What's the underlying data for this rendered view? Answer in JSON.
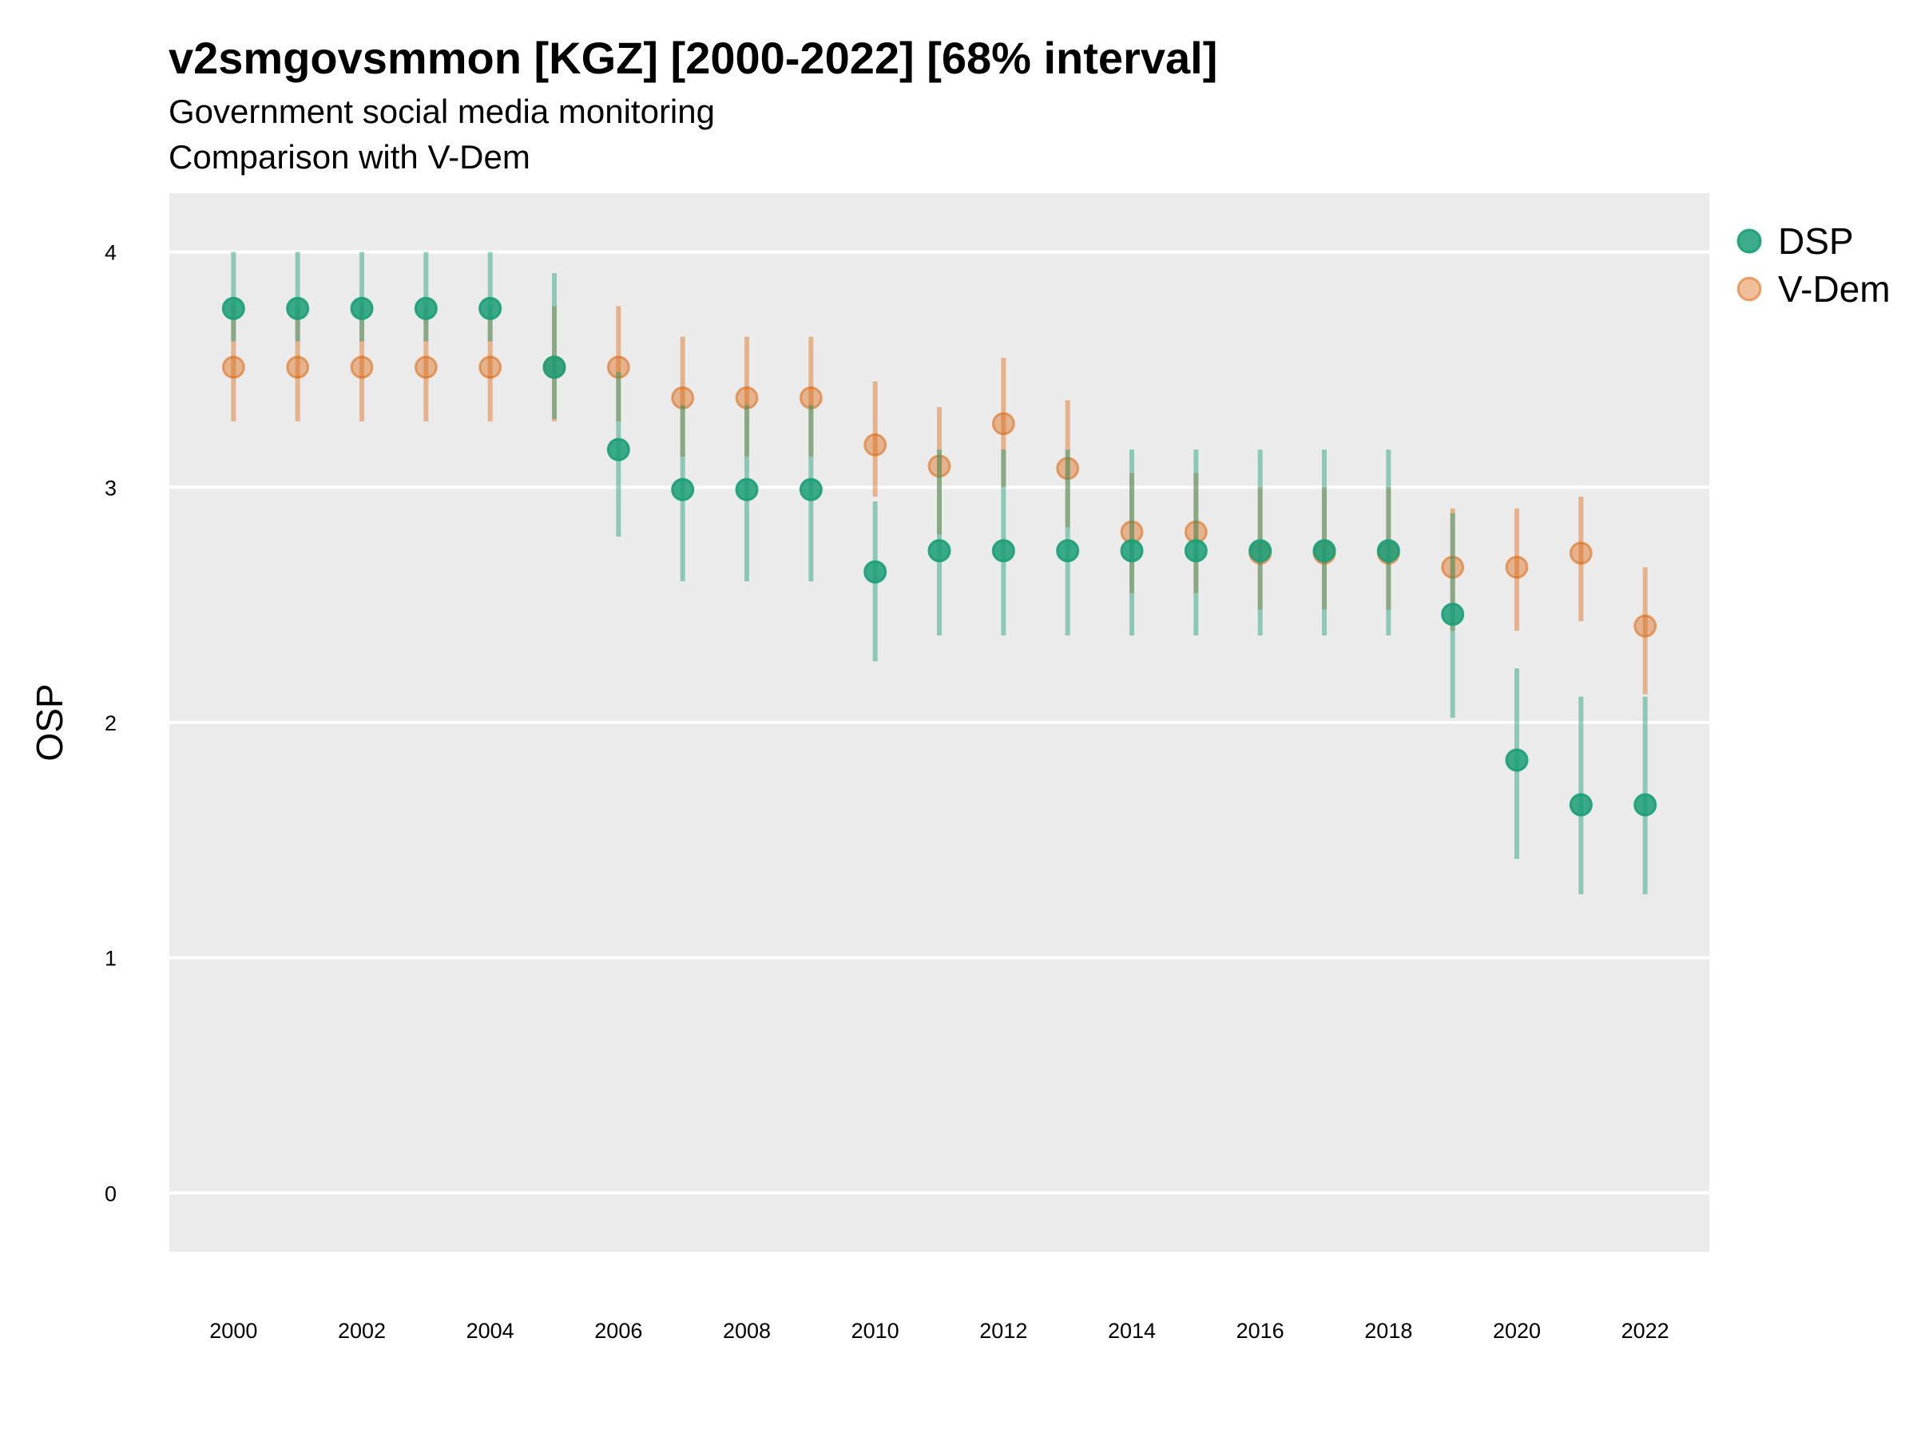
{
  "chart_data": {
    "type": "scatter",
    "title": "v2smgovsmmon [KGZ] [2000-2022] [68% interval]",
    "subtitle": "Government social media monitoring",
    "subtitle2": "Comparison with V-Dem",
    "xlabel": "",
    "ylabel": "OSP",
    "ylim": [
      -0.25,
      4.25
    ],
    "xlim": [
      1999,
      2023
    ],
    "yticks": [
      0,
      1,
      2,
      3,
      4
    ],
    "xticks": [
      2000,
      2002,
      2004,
      2006,
      2008,
      2010,
      2012,
      2014,
      2016,
      2018,
      2020,
      2022
    ],
    "x": [
      2000,
      2001,
      2002,
      2003,
      2004,
      2005,
      2006,
      2007,
      2008,
      2009,
      2010,
      2011,
      2012,
      2013,
      2014,
      2015,
      2016,
      2017,
      2018,
      2019,
      2020,
      2021,
      2022
    ],
    "legend_position": "right",
    "series": [
      {
        "name": "DSP",
        "color": "#1b9e77",
        "values": [
          3.76,
          3.76,
          3.76,
          3.76,
          3.76,
          3.51,
          3.16,
          2.99,
          2.99,
          2.99,
          2.64,
          2.73,
          2.73,
          2.73,
          2.73,
          2.73,
          2.73,
          2.73,
          2.73,
          2.46,
          1.84,
          1.65,
          1.65
        ],
        "lower": [
          3.62,
          3.62,
          3.62,
          3.62,
          3.62,
          3.29,
          2.79,
          2.6,
          2.6,
          2.6,
          2.26,
          2.37,
          2.37,
          2.37,
          2.37,
          2.37,
          2.37,
          2.37,
          2.37,
          2.02,
          1.42,
          1.27,
          1.27
        ],
        "upper": [
          4.0,
          4.0,
          4.0,
          4.0,
          4.0,
          3.91,
          3.49,
          3.35,
          3.35,
          3.35,
          2.94,
          3.16,
          3.16,
          3.16,
          3.16,
          3.16,
          3.16,
          3.16,
          3.16,
          2.89,
          2.23,
          2.11,
          2.11
        ]
      },
      {
        "name": "V-Dem",
        "color": "#d95f02",
        "values": [
          3.51,
          3.51,
          3.51,
          3.51,
          3.51,
          3.51,
          3.51,
          3.38,
          3.38,
          3.38,
          3.18,
          3.09,
          3.27,
          3.08,
          2.81,
          2.81,
          2.72,
          2.72,
          2.72,
          2.66,
          2.66,
          2.72,
          2.41
        ],
        "lower": [
          3.28,
          3.28,
          3.28,
          3.28,
          3.28,
          3.28,
          3.28,
          3.13,
          3.13,
          3.13,
          2.96,
          2.8,
          3.0,
          2.83,
          2.55,
          2.55,
          2.48,
          2.48,
          2.48,
          2.39,
          2.39,
          2.43,
          2.12
        ],
        "upper": [
          3.77,
          3.77,
          3.77,
          3.77,
          3.77,
          3.77,
          3.77,
          3.64,
          3.64,
          3.64,
          3.45,
          3.34,
          3.55,
          3.37,
          3.06,
          3.06,
          3.0,
          3.0,
          3.0,
          2.91,
          2.91,
          2.96,
          2.66
        ]
      }
    ]
  }
}
